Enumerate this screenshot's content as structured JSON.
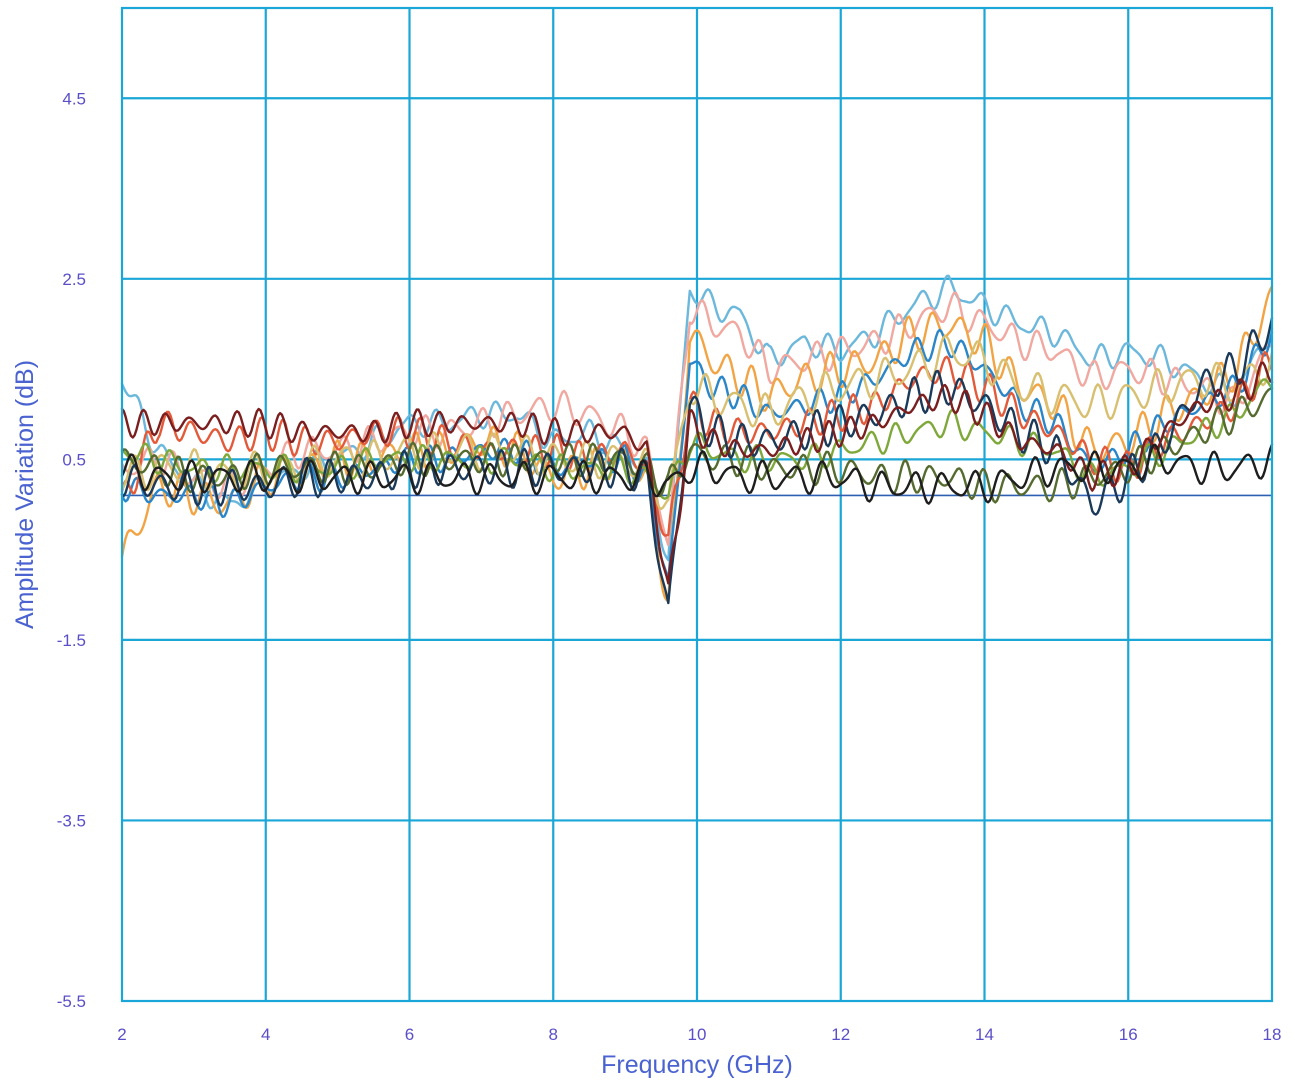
{
  "chart_data": {
    "type": "line",
    "title": "",
    "xlabel": "Frequency (GHz)",
    "ylabel": "Amplitude Variation (dB)",
    "xlim": [
      2,
      18
    ],
    "ylim": [
      -5.5,
      5.5
    ],
    "x_ticks": [
      2,
      4,
      6,
      8,
      10,
      12,
      14,
      16,
      18
    ],
    "x_tick_labels": [
      "2",
      "4",
      "6",
      "8",
      "10",
      "12",
      "14",
      "16",
      "18"
    ],
    "y_ticks": [
      4.5,
      2.5,
      0.5,
      -1.5,
      -3.5,
      -5.5
    ],
    "y_tick_labels": [
      "4.5",
      "2.5",
      "0.5",
      "-1.5",
      "-3.5",
      "-5.5"
    ],
    "grid": true,
    "reference_line_y": 0.1,
    "x": [
      2,
      2.5,
      3,
      3.5,
      4,
      4.5,
      5,
      5.5,
      6,
      6.5,
      7,
      7.5,
      8,
      8.5,
      9,
      9.3,
      9.6,
      9.9,
      10.2,
      10.6,
      11,
      11.5,
      12,
      12.5,
      13,
      13.5,
      14,
      14.5,
      15,
      15.5,
      16,
      16.5,
      17,
      17.5,
      18
    ],
    "series": [
      {
        "color": "#6cb8dc",
        "values": [
          1.4,
          0.6,
          0.2,
          0.0,
          0.2,
          0.4,
          0.5,
          0.7,
          0.9,
          0.9,
          1.0,
          1.0,
          0.7,
          0.8,
          0.6,
          0.4,
          -0.6,
          2.4,
          2.2,
          2.1,
          1.6,
          1.8,
          1.7,
          1.9,
          2.2,
          2.4,
          2.2,
          2.0,
          1.9,
          1.6,
          1.7,
          1.6,
          1.4,
          1.2,
          2.0
        ]
      },
      {
        "color": "#f0a8a0",
        "values": [
          0.4,
          0.5,
          0.3,
          0.2,
          0.4,
          0.6,
          0.6,
          0.7,
          0.8,
          0.8,
          0.9,
          1.0,
          1.1,
          1.0,
          0.8,
          0.6,
          -0.4,
          2.2,
          2.0,
          1.9,
          1.5,
          1.6,
          1.7,
          1.8,
          2.0,
          2.2,
          2.0,
          1.8,
          1.7,
          1.4,
          1.5,
          1.4,
          1.3,
          1.1,
          1.8
        ]
      },
      {
        "color": "#f2a444",
        "values": [
          -0.6,
          0.2,
          0.1,
          0.0,
          0.3,
          0.4,
          0.5,
          0.5,
          0.6,
          0.6,
          0.7,
          0.6,
          0.3,
          0.4,
          0.5,
          0.3,
          -1.1,
          1.9,
          1.6,
          1.4,
          1.2,
          1.4,
          1.5,
          1.6,
          1.9,
          2.0,
          1.8,
          1.3,
          1.1,
          0.6,
          0.7,
          1.0,
          1.2,
          1.5,
          2.3
        ]
      },
      {
        "color": "#2a86c8",
        "values": [
          0.2,
          0.1,
          0.1,
          0.0,
          0.2,
          0.3,
          0.3,
          0.4,
          0.5,
          0.5,
          0.6,
          0.6,
          0.4,
          0.5,
          0.5,
          0.3,
          -0.9,
          1.6,
          1.3,
          1.2,
          1.0,
          1.1,
          1.2,
          1.4,
          1.7,
          1.8,
          1.5,
          1.1,
          0.9,
          0.4,
          0.6,
          0.9,
          1.1,
          1.3,
          1.9
        ]
      },
      {
        "color": "#e35a3a",
        "values": [
          0.0,
          0.9,
          0.8,
          0.7,
          0.8,
          0.7,
          0.7,
          0.8,
          0.8,
          0.7,
          0.6,
          0.6,
          0.6,
          0.5,
          0.6,
          0.4,
          -0.4,
          1.1,
          0.9,
          0.8,
          0.8,
          0.9,
          1.0,
          1.1,
          1.4,
          1.5,
          1.3,
          1.0,
          0.8,
          0.5,
          0.4,
          0.7,
          0.9,
          1.1,
          1.6
        ]
      },
      {
        "color": "#d8c070",
        "values": [
          0.3,
          0.4,
          0.4,
          0.3,
          0.4,
          0.4,
          0.5,
          0.5,
          0.6,
          0.6,
          0.6,
          0.6,
          0.5,
          0.5,
          0.5,
          0.4,
          0.0,
          1.3,
          1.2,
          1.1,
          1.0,
          1.2,
          1.3,
          1.4,
          1.5,
          1.7,
          1.6,
          1.3,
          1.2,
          1.1,
          1.2,
          1.3,
          1.4,
          1.3,
          1.6
        ]
      },
      {
        "color": "#7ea83a",
        "values": [
          0.6,
          0.5,
          0.4,
          0.4,
          0.4,
          0.4,
          0.4,
          0.5,
          0.5,
          0.5,
          0.5,
          0.5,
          0.4,
          0.4,
          0.4,
          0.3,
          0.1,
          0.7,
          0.6,
          0.5,
          0.5,
          0.5,
          0.6,
          0.7,
          0.8,
          0.9,
          0.8,
          0.7,
          0.6,
          0.3,
          0.4,
          0.6,
          0.8,
          1.0,
          1.4
        ]
      },
      {
        "color": "#556b2f",
        "values": [
          0.5,
          0.4,
          0.3,
          0.3,
          0.4,
          0.4,
          0.4,
          0.4,
          0.5,
          0.5,
          0.5,
          0.5,
          0.5,
          0.5,
          0.5,
          0.4,
          0.2,
          0.6,
          0.5,
          0.5,
          0.4,
          0.4,
          0.4,
          0.3,
          0.3,
          0.3,
          0.2,
          0.2,
          0.2,
          0.3,
          0.4,
          0.6,
          0.8,
          1.0,
          1.2
        ]
      },
      {
        "color": "#1b3a5a",
        "values": [
          0.3,
          0.2,
          0.2,
          0.2,
          0.2,
          0.3,
          0.3,
          0.3,
          0.4,
          0.4,
          0.4,
          0.4,
          0.4,
          0.4,
          0.4,
          0.3,
          -1.2,
          1.1,
          0.8,
          0.7,
          0.7,
          0.8,
          0.9,
          1.0,
          1.2,
          1.3,
          1.1,
          0.8,
          0.6,
          0.0,
          0.3,
          0.7,
          1.3,
          1.5,
          2.0
        ]
      },
      {
        "color": "#7a1e1e",
        "values": [
          0.9,
          0.9,
          0.9,
          0.9,
          0.9,
          0.8,
          0.8,
          0.8,
          0.9,
          0.9,
          0.9,
          0.9,
          0.8,
          0.8,
          0.8,
          0.6,
          -1.0,
          0.9,
          0.7,
          0.6,
          0.6,
          0.7,
          0.8,
          0.9,
          1.1,
          1.2,
          1.0,
          0.7,
          0.6,
          0.3,
          0.4,
          0.8,
          1.1,
          1.2,
          1.5
        ]
      },
      {
        "color": "#1e1e1e",
        "values": [
          0.4,
          0.3,
          0.3,
          0.3,
          0.3,
          0.3,
          0.3,
          0.3,
          0.3,
          0.3,
          0.3,
          0.3,
          0.3,
          0.3,
          0.3,
          0.3,
          0.2,
          0.4,
          0.4,
          0.3,
          0.3,
          0.3,
          0.3,
          0.2,
          0.2,
          0.2,
          0.2,
          0.3,
          0.4,
          0.4,
          0.4,
          0.5,
          0.4,
          0.4,
          0.5
        ]
      }
    ]
  }
}
